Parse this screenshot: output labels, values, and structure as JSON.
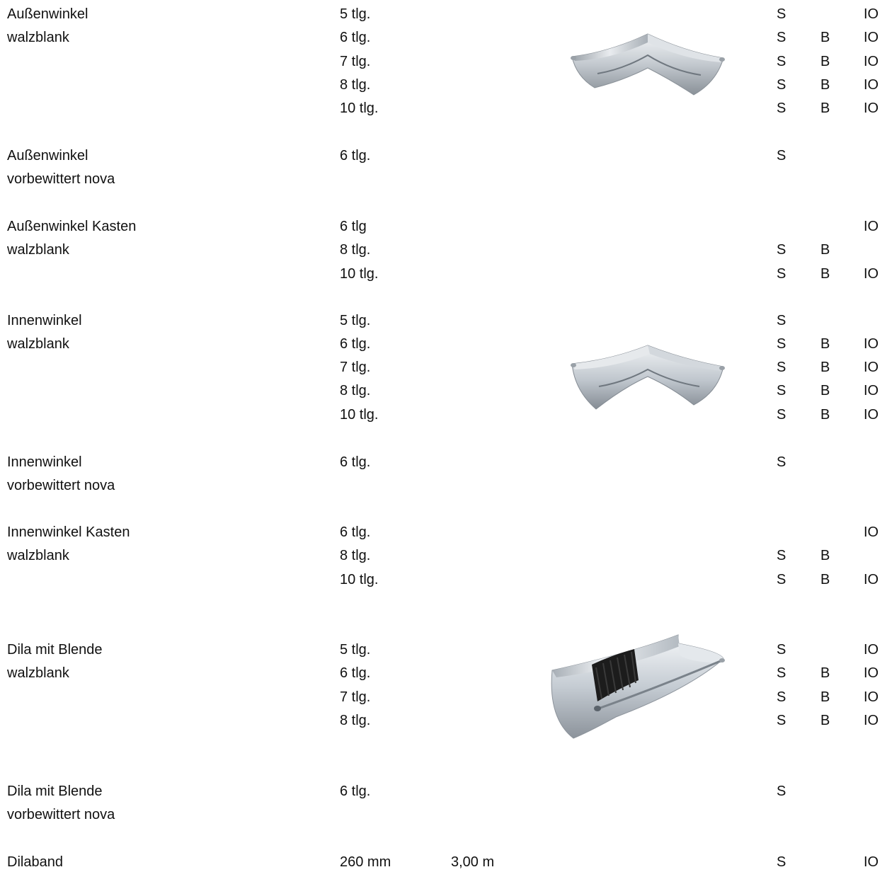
{
  "sections": [
    {
      "name_lines": [
        "Außenwinkel",
        "walzblank"
      ],
      "rows": [
        {
          "size": "5 tlg.",
          "s": "S",
          "b": "",
          "io": "IO"
        },
        {
          "size": "6 tlg.",
          "s": "S",
          "b": "B",
          "io": "IO"
        },
        {
          "size": "7 tlg.",
          "s": "S",
          "b": "B",
          "io": "IO"
        },
        {
          "size": "8 tlg.",
          "s": "S",
          "b": "B",
          "io": "IO"
        },
        {
          "size": "10 tlg.",
          "s": "S",
          "b": "B",
          "io": "IO"
        }
      ]
    },
    {
      "name_lines": [
        "Außenwinkel",
        "vorbewittert nova"
      ],
      "rows": [
        {
          "size": "6 tlg.",
          "s": "S",
          "b": "",
          "io": ""
        }
      ]
    },
    {
      "name_lines": [
        "Außenwinkel Kasten",
        "walzblank"
      ],
      "rows": [
        {
          "size": "6 tlg",
          "s": "",
          "b": "",
          "io": "IO"
        },
        {
          "size": "8 tlg.",
          "s": "S",
          "b": "B",
          "io": ""
        },
        {
          "size": "10 tlg.",
          "s": "S",
          "b": "B",
          "io": "IO"
        }
      ]
    },
    {
      "name_lines": [
        "Innenwinkel",
        "walzblank"
      ],
      "rows": [
        {
          "size": "5 tlg.",
          "s": "S",
          "b": "",
          "io": ""
        },
        {
          "size": "6 tlg.",
          "s": "S",
          "b": "B",
          "io": "IO"
        },
        {
          "size": "7 tlg.",
          "s": "S",
          "b": "B",
          "io": "IO"
        },
        {
          "size": "8 tlg.",
          "s": "S",
          "b": "B",
          "io": "IO"
        },
        {
          "size": "10 tlg.",
          "s": "S",
          "b": "B",
          "io": "IO"
        }
      ]
    },
    {
      "name_lines": [
        "Innenwinkel",
        "vorbewittert nova"
      ],
      "rows": [
        {
          "size": "6 tlg.",
          "s": "S",
          "b": "",
          "io": ""
        }
      ]
    },
    {
      "name_lines": [
        "Innenwinkel Kasten",
        "walzblank"
      ],
      "rows": [
        {
          "size": "6 tlg.",
          "s": "",
          "b": "",
          "io": "IO"
        },
        {
          "size": "8 tlg.",
          "s": "S",
          "b": "B",
          "io": ""
        },
        {
          "size": "10 tlg.",
          "s": "S",
          "b": "B",
          "io": "IO"
        }
      ]
    },
    {
      "name_lines": [
        "Dila mit Blende",
        "walzblank"
      ],
      "rows": [
        {
          "size": "5 tlg.",
          "s": "S",
          "b": "",
          "io": "IO"
        },
        {
          "size": "6 tlg.",
          "s": "S",
          "b": "B",
          "io": "IO"
        },
        {
          "size": "7 tlg.",
          "s": "S",
          "b": "B",
          "io": "IO"
        },
        {
          "size": "8 tlg.",
          "s": "S",
          "b": "B",
          "io": "IO"
        }
      ]
    },
    {
      "name_lines": [
        "Dila mit Blende",
        "vorbewittert nova"
      ],
      "rows": [
        {
          "size": "6 tlg.",
          "s": "S",
          "b": "",
          "io": ""
        }
      ]
    },
    {
      "name_lines": [
        "Dilaband"
      ],
      "rows": [
        {
          "size": "260 mm",
          "length": "3,00 m",
          "s": "S",
          "b": "",
          "io": "IO"
        }
      ]
    }
  ],
  "images": [
    {
      "icon": "outer-corner-gutter-icon"
    },
    {
      "icon": "inner-corner-gutter-icon"
    },
    {
      "icon": "expansion-joint-gutter-icon"
    }
  ],
  "colors": {
    "text": "#111111",
    "metal_light": "#eef1f4",
    "metal_mid": "#b9c0c7",
    "metal_dark": "#7d858d",
    "rubber": "#1c1c1c"
  }
}
